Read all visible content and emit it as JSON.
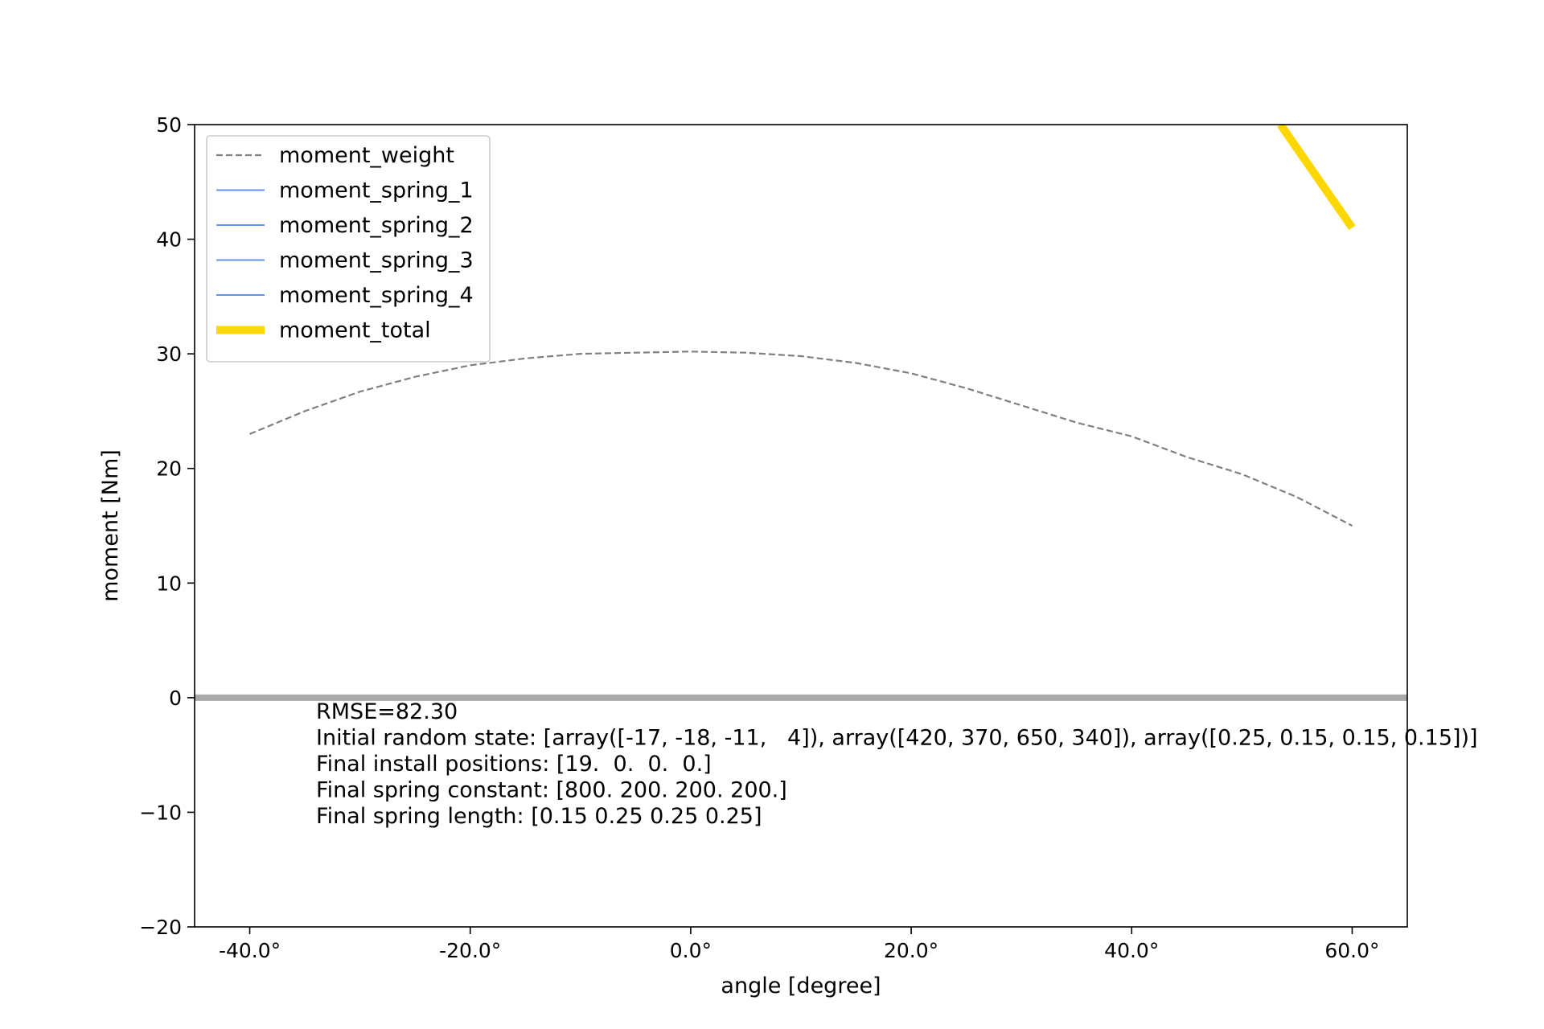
{
  "chart_data": {
    "type": "line",
    "title": "",
    "xlabel": "angle [degree]",
    "ylabel": "moment [Nm]",
    "xlim": [
      -45,
      65
    ],
    "ylim": [
      -20,
      50
    ],
    "x_ticks": [
      -40,
      -20,
      0,
      20,
      40,
      60
    ],
    "x_tick_labels": [
      "-40.0°",
      "-20.0°",
      "0.0°",
      "20.0°",
      "40.0°",
      "60.0°"
    ],
    "y_ticks": [
      -20,
      -10,
      0,
      10,
      20,
      30,
      40,
      50
    ],
    "y_tick_labels": [
      "−20",
      "−10",
      "0",
      "10",
      "20",
      "30",
      "40",
      "50"
    ],
    "grid": false,
    "legend_position": "top-left",
    "series": [
      {
        "name": "moment_weight",
        "color": "#808080",
        "style": "dashed",
        "x": [
          -40,
          -35,
          -30,
          -25,
          -20,
          -15,
          -10,
          -5,
          0,
          5,
          10,
          15,
          20,
          25,
          30,
          35,
          40,
          45,
          50,
          55,
          60
        ],
        "y": [
          23.0,
          25.0,
          26.7,
          28.0,
          29.0,
          29.6,
          30.0,
          30.1,
          30.2,
          30.1,
          29.8,
          29.2,
          28.3,
          27.0,
          25.5,
          24.0,
          22.8,
          21.0,
          19.5,
          17.5,
          15.0
        ]
      },
      {
        "name": "moment_spring_1",
        "color": "#6495ED",
        "style": "solid",
        "x": [
          -40,
          60
        ],
        "y": [
          0,
          0
        ]
      },
      {
        "name": "moment_spring_2",
        "color": "#6495ED",
        "style": "solid",
        "x": [
          -40,
          60
        ],
        "y": [
          0,
          0
        ]
      },
      {
        "name": "moment_spring_3",
        "color": "#6495ED",
        "style": "solid",
        "x": [
          -40,
          60
        ],
        "y": [
          0,
          0
        ]
      },
      {
        "name": "moment_spring_4",
        "color": "#6495ED",
        "style": "solid",
        "x": [
          -40,
          60
        ],
        "y": [
          0,
          0
        ]
      },
      {
        "name": "moment_total",
        "color": "#FFD700",
        "style": "thick",
        "x": [
          53.5,
          60
        ],
        "y": [
          50.0,
          41.0
        ]
      }
    ],
    "reference_line": {
      "y": 0,
      "color": "#A9A9A9"
    },
    "annotations": [
      "RMSE=82.30",
      "Initial random state: [array([-17, -18, -11,   4]), array([420, 370, 650, 340]), array([0.25, 0.15, 0.15, 0.15])]",
      "Final install positions: [19.  0.  0.  0.]",
      "Final spring constant: [800. 200. 200. 200.]",
      "Final spring length: [0.15 0.25 0.25 0.25]"
    ]
  }
}
